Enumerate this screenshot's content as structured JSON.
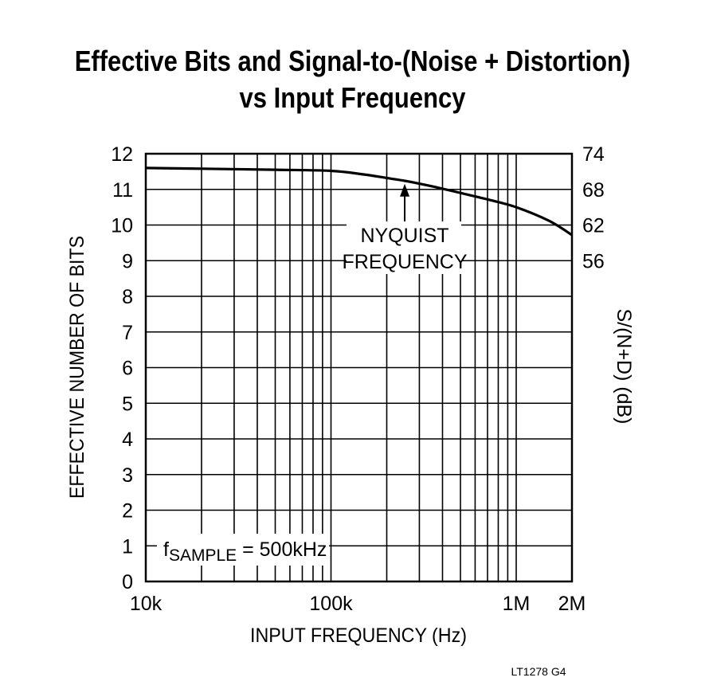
{
  "chart_data": {
    "type": "line",
    "title_lines": [
      "Effective Bits and Signal-to-(Noise + Distortion)",
      "vs Input Frequency"
    ],
    "xlabel": "INPUT FREQUENCY (Hz)",
    "ylabel": "EFFECTIVE NUMBER OF BITS",
    "y2label": "S/(N+D) (dB)",
    "x_scale": "log",
    "xlim": [
      10000,
      2000000
    ],
    "ylim": [
      0,
      12
    ],
    "grid": true,
    "x_tick_labels": [
      {
        "value": 10000,
        "label": "10k"
      },
      {
        "value": 100000,
        "label": "100k"
      },
      {
        "value": 1000000,
        "label": "1M"
      },
      {
        "value": 2000000,
        "label": "2M"
      }
    ],
    "y_ticks": [
      "0",
      "1",
      "2",
      "3",
      "4",
      "5",
      "6",
      "7",
      "8",
      "9",
      "10",
      "11",
      "12"
    ],
    "y2_tick_labels": [
      {
        "value": 9,
        "label": "56"
      },
      {
        "value": 10,
        "label": "62"
      },
      {
        "value": 11,
        "label": "68"
      },
      {
        "value": 12,
        "label": "74"
      }
    ],
    "series": [
      {
        "x": [
          10000,
          20000,
          50000,
          100000,
          150000,
          200000,
          250000,
          300000,
          400000,
          500000,
          700000,
          1000000,
          1500000,
          2000000
        ],
        "y": [
          11.6,
          11.58,
          11.55,
          11.52,
          11.42,
          11.32,
          11.24,
          11.16,
          11.02,
          10.9,
          10.72,
          10.5,
          10.12,
          9.72
        ]
      }
    ],
    "annotations": [
      {
        "text_lines": [
          "NYQUIST",
          "FREQUENCY"
        ],
        "x": 250000,
        "y": 11.2
      },
      {
        "text_prefix": "f",
        "text_sub": "SAMPLE",
        "text_suffix": " = 500kHz"
      }
    ],
    "figure_id": "LT1278 G4"
  }
}
